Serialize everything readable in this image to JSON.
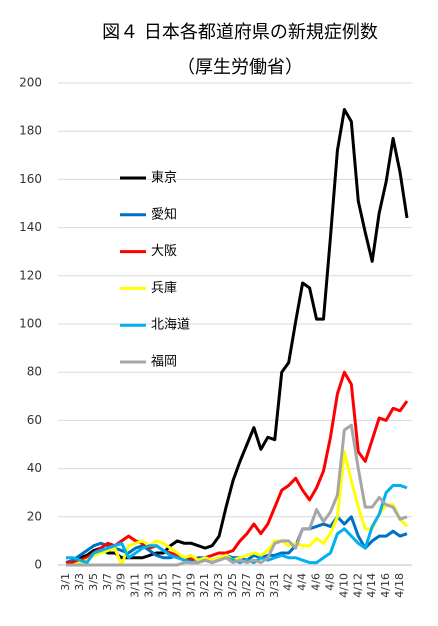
{
  "chart_data": {
    "type": "line",
    "title": "図４ 日本各都道府県の新規症例数",
    "subtitle": "（厚生労働省）",
    "categories": [
      "3/1",
      null,
      "3/3",
      null,
      "3/5",
      null,
      "3/7",
      null,
      "3/9",
      null,
      "3/11",
      null,
      "3/13",
      null,
      "3/15",
      null,
      "3/17",
      null,
      "3/19",
      null,
      "3/21",
      null,
      "3/23",
      null,
      "3/25",
      null,
      "3/27",
      null,
      "3/29",
      null,
      "3/31",
      null,
      "4/2",
      null,
      "4/4",
      null,
      "4/6",
      null,
      "4/8",
      null,
      "4/10",
      null,
      "4/12",
      null,
      "4/14",
      null,
      "4/16",
      null,
      "4/18",
      null
    ],
    "series": [
      {
        "name": "東京",
        "color": "#000000",
        "values": [
          1,
          1,
          3,
          4,
          6,
          7,
          5,
          5,
          3,
          3,
          3,
          3,
          4,
          5,
          5,
          8,
          10,
          9,
          9,
          8,
          7,
          8,
          12,
          24,
          35,
          43,
          50,
          57,
          48,
          53,
          52,
          80,
          84,
          101,
          117,
          115,
          102,
          102,
          136,
          172,
          189,
          184,
          151,
          138,
          126,
          146,
          159,
          177,
          163,
          144
        ]
      },
      {
        "name": "愛知",
        "color": "#0070c0",
        "values": [
          1,
          2,
          4,
          6,
          8,
          9,
          8,
          7,
          6,
          5,
          7,
          8,
          6,
          4,
          3,
          3,
          4,
          3,
          2,
          3,
          3,
          2,
          3,
          4,
          3,
          3,
          2,
          4,
          3,
          4,
          4,
          5,
          5,
          8,
          15,
          15,
          16,
          17,
          16,
          20,
          17,
          20,
          12,
          7,
          10,
          12,
          12,
          14,
          12,
          13
        ]
      },
      {
        "name": "大阪",
        "color": "#ff0000",
        "values": [
          1,
          1,
          2,
          3,
          5,
          7,
          9,
          8,
          10,
          12,
          10,
          9,
          7,
          8,
          6,
          5,
          4,
          3,
          3,
          2,
          3,
          4,
          5,
          5,
          6,
          10,
          13,
          17,
          13,
          17,
          24,
          31,
          33,
          36,
          31,
          27,
          32,
          39,
          53,
          71,
          80,
          75,
          47,
          43,
          52,
          61,
          60,
          65,
          64,
          68
        ]
      },
      {
        "name": "兵庫",
        "color": "#ffff00",
        "values": [
          0,
          0,
          1,
          2,
          4,
          5,
          6,
          7,
          0,
          8,
          9,
          10,
          8,
          10,
          9,
          7,
          5,
          3,
          4,
          2,
          3,
          2,
          3,
          4,
          2,
          3,
          4,
          5,
          4,
          6,
          10,
          10,
          8,
          9,
          8,
          8,
          11,
          9,
          13,
          20,
          47,
          35,
          24,
          15,
          15,
          21,
          25,
          25,
          19,
          16
        ]
      },
      {
        "name": "北海道",
        "color": "#00b0f0",
        "values": [
          3,
          3,
          2,
          1,
          5,
          6,
          7,
          8,
          9,
          3,
          5,
          7,
          8,
          8,
          6,
          4,
          3,
          2,
          1,
          1,
          2,
          1,
          2,
          3,
          2,
          1,
          2,
          1,
          3,
          2,
          3,
          4,
          3,
          3,
          2,
          1,
          1,
          3,
          5,
          13,
          15,
          12,
          9,
          7,
          16,
          21,
          30,
          33,
          33,
          32
        ]
      },
      {
        "name": "福岡",
        "color": "#a6a6a6",
        "values": [
          0,
          0,
          0,
          0,
          0,
          0,
          0,
          0,
          0,
          0,
          0,
          0,
          0,
          0,
          0,
          0,
          0,
          1,
          1,
          1,
          2,
          1,
          2,
          3,
          1,
          2,
          1,
          2,
          1,
          3,
          9,
          10,
          10,
          7,
          15,
          15,
          23,
          18,
          22,
          29,
          56,
          58,
          40,
          24,
          24,
          28,
          25,
          24,
          19,
          20
        ]
      }
    ],
    "ylim": [
      0,
      200
    ],
    "yticks": [
      0,
      20,
      40,
      60,
      80,
      100,
      120,
      140,
      160,
      180,
      200
    ],
    "grid": true
  }
}
